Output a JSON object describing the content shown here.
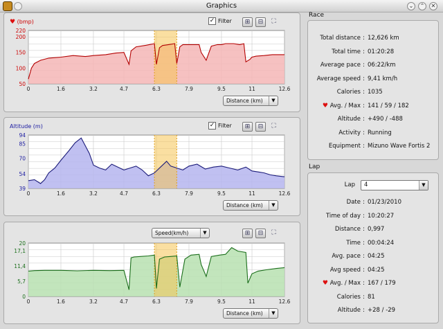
{
  "window": {
    "title": "Graphics",
    "icon": "app-icon",
    "menu_icon": "window-menu-icon",
    "buttons": [
      "minimize-icon",
      "maximize-icon",
      "close-icon"
    ]
  },
  "heart_glyph": "♥",
  "graphs": [
    {
      "title": "(bmp)",
      "title_color": "#cc0000",
      "line_color": "#b30000",
      "fill_color": "#f4b6b6",
      "filter_label": "Filter",
      "filter_checked": true,
      "check_glyph": "✓",
      "x_axis_label": "Distance (km)"
    },
    {
      "title": "Altitude (m)",
      "title_color": "#1a1aa0",
      "line_color": "#1b1b7a",
      "fill_color": "#b5b5ee",
      "filter_label": "Filter",
      "filter_checked": true,
      "check_glyph": "✓",
      "x_axis_label": "Distance (km)"
    },
    {
      "title": "",
      "title_color": "#1a6e1a",
      "line_color": "#1a6e1a",
      "fill_color": "#b7e0b0",
      "metric_select": "Speed(km/h)",
      "x_axis_label": "Distance (km)"
    }
  ],
  "chart_data": [
    {
      "type": "area",
      "title": "(bmp)",
      "xlabel": "",
      "ylabel": "",
      "x_ticks": [
        "0",
        "1.6",
        "3.2",
        "4.7",
        "6.3",
        "7.9",
        "9.5",
        "11",
        "12.6"
      ],
      "y_ticks": [
        "50",
        "100",
        "150",
        "200",
        "220"
      ],
      "xlim": [
        0,
        12.6
      ],
      "ylim": [
        50,
        220
      ],
      "highlight_range": [
        6.2,
        7.3
      ],
      "grid": true,
      "series": [
        {
          "x": [
            0,
            0.15,
            0.3,
            0.6,
            1.0,
            1.6,
            2.2,
            2.8,
            3.2,
            3.8,
            4.3,
            4.7,
            4.95,
            5.05,
            5.3,
            5.8,
            6.2,
            6.3,
            6.45,
            6.6,
            6.9,
            7.2,
            7.3,
            7.45,
            7.6,
            7.9,
            8.4,
            8.5,
            8.75,
            9.0,
            9.3,
            9.5,
            9.7,
            10.1,
            10.4,
            10.6,
            10.7,
            10.9,
            11.0,
            11.2,
            11.6,
            12.0,
            12.6
          ],
          "y": [
            65,
            100,
            115,
            125,
            132,
            135,
            140,
            137,
            140,
            143,
            148,
            150,
            112,
            155,
            168,
            173,
            178,
            112,
            165,
            172,
            175,
            178,
            115,
            168,
            175,
            175,
            175,
            150,
            125,
            170,
            175,
            175,
            178,
            178,
            175,
            178,
            120,
            128,
            135,
            138,
            140,
            143,
            143
          ]
        }
      ]
    },
    {
      "type": "area",
      "title": "Altitude (m)",
      "xlabel": "",
      "ylabel": "",
      "x_ticks": [
        "0",
        "1.6",
        "3.2",
        "4.7",
        "6.3",
        "7.9",
        "9.5",
        "11",
        "12.6"
      ],
      "y_ticks": [
        "39",
        "54",
        "70",
        "85",
        "94"
      ],
      "xlim": [
        0,
        12.6
      ],
      "ylim": [
        39,
        94
      ],
      "highlight_range": [
        6.2,
        7.3
      ],
      "grid": true,
      "series": [
        {
          "x": [
            0,
            0.3,
            0.6,
            0.8,
            1.0,
            1.3,
            1.6,
            2.0,
            2.3,
            2.6,
            2.8,
            3.0,
            3.2,
            3.5,
            3.8,
            4.1,
            4.5,
            4.7,
            5.0,
            5.3,
            5.6,
            5.9,
            6.2,
            6.5,
            6.8,
            7.0,
            7.3,
            7.6,
            7.9,
            8.3,
            8.7,
            9.1,
            9.5,
            9.9,
            10.3,
            10.7,
            11.0,
            11.3,
            11.6,
            11.9,
            12.2,
            12.6
          ],
          "y": [
            47,
            48,
            44,
            48,
            55,
            60,
            68,
            78,
            86,
            91,
            83,
            75,
            63,
            60,
            58,
            64,
            60,
            58,
            60,
            62,
            58,
            52,
            55,
            61,
            67,
            62,
            60,
            58,
            62,
            64,
            59,
            61,
            62,
            60,
            58,
            61,
            57,
            56,
            55,
            53,
            52,
            51
          ]
        }
      ]
    },
    {
      "type": "area",
      "title": "Speed(km/h)",
      "xlabel": "",
      "ylabel": "",
      "x_ticks": [
        "0",
        "1.6",
        "3.2",
        "4.7",
        "6.3",
        "7.9",
        "9.5",
        "11",
        "12.6"
      ],
      "y_ticks": [
        "0",
        "5,7",
        "11,4",
        "17,1",
        "20"
      ],
      "xlim": [
        0,
        12.6
      ],
      "ylim": [
        0,
        20
      ],
      "highlight_range": [
        6.2,
        7.3
      ],
      "grid": true,
      "series": [
        {
          "x": [
            0,
            0.3,
            0.8,
            1.6,
            2.4,
            3.2,
            4.0,
            4.7,
            4.95,
            5.05,
            5.2,
            5.5,
            5.9,
            6.2,
            6.3,
            6.45,
            6.7,
            7.0,
            7.3,
            7.45,
            7.7,
            8.0,
            8.4,
            8.5,
            8.75,
            9.0,
            9.4,
            9.7,
            10.0,
            10.3,
            10.7,
            10.8,
            11.0,
            11.3,
            11.7,
            12.2,
            12.6
          ],
          "y": [
            9.5,
            9.7,
            9.8,
            9.8,
            9.6,
            9.8,
            9.7,
            9.8,
            2.5,
            14.5,
            14.8,
            15.0,
            15.2,
            15.5,
            3.0,
            14.0,
            14.8,
            15.0,
            15.2,
            3.5,
            14.0,
            15.5,
            15.8,
            12.0,
            7.5,
            15.0,
            15.5,
            15.8,
            18.3,
            17.0,
            16.5,
            5.0,
            8.5,
            9.5,
            10.0,
            10.5,
            10.8
          ]
        }
      ]
    }
  ],
  "race": {
    "heading": "Race",
    "rows": [
      {
        "label": "Total distance",
        "value": "12,626 km"
      },
      {
        "label": "Total time",
        "value": "01:20:28"
      },
      {
        "label": "Average pace",
        "value": "06:22/km"
      },
      {
        "label": "Average speed",
        "value": "9,41 km/h"
      },
      {
        "label": "Calories",
        "value": "1035"
      },
      {
        "label": "Avg. / Max",
        "value": "141 / 59 / 182",
        "heart": true
      },
      {
        "label": "Altitude",
        "value": "+490 / -488"
      },
      {
        "label": "Activity",
        "value": "Running"
      },
      {
        "label": "Equipment",
        "value": "Mizuno Wave Fortis 2"
      }
    ]
  },
  "lap": {
    "heading": "Lap",
    "select_label": "Lap",
    "select_value": "4",
    "rows": [
      {
        "label": "Date",
        "value": "01/23/2010"
      },
      {
        "label": "Time of day",
        "value": "10:20:27"
      },
      {
        "label": "Distance",
        "value": "0,997"
      },
      {
        "label": "Time",
        "value": "00:04:24"
      },
      {
        "label": "Avg. pace",
        "value": "04:25"
      },
      {
        "label": "Avg speed",
        "value": "04:25"
      },
      {
        "label": "Avg. / Max",
        "value": "167 / 179",
        "heart": true
      },
      {
        "label": "Calories",
        "value": "81"
      },
      {
        "label": "Altitude",
        "value": "+28 / -29"
      }
    ]
  },
  "colors": {
    "highlight": "#f6c453",
    "grid": "#c8c8c8",
    "panel": "#e4e4e4"
  }
}
